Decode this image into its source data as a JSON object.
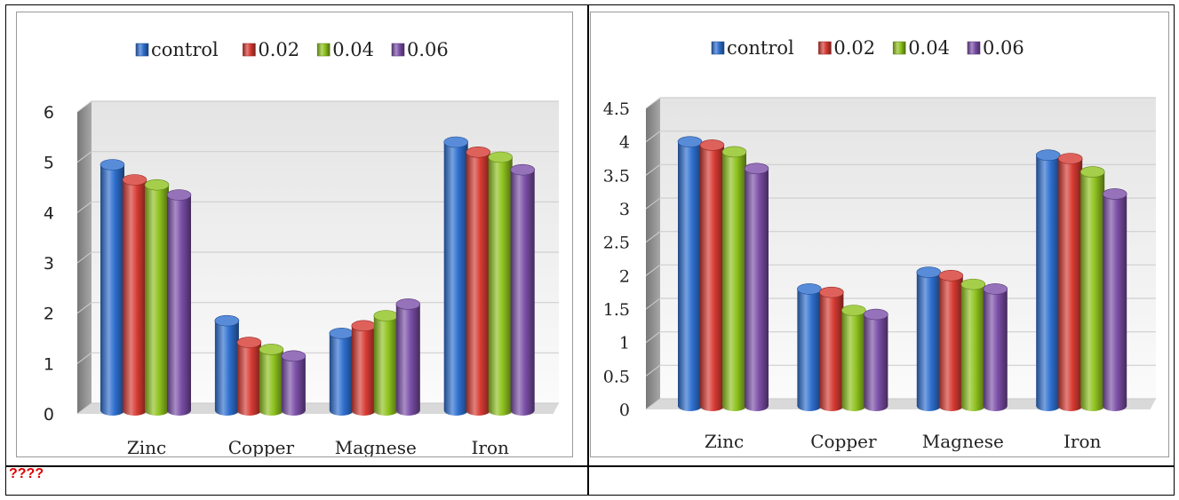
{
  "caption": "????",
  "chart_data": [
    {
      "type": "bar",
      "categories": [
        "Zinc",
        "Copper",
        "Magnese",
        "Iron"
      ],
      "series": [
        {
          "name": "control",
          "values": [
            4.95,
            1.85,
            1.6,
            5.4
          ],
          "color": "#2e6fcf"
        },
        {
          "name": "0.02",
          "values": [
            4.65,
            1.42,
            1.75,
            5.2
          ],
          "color": "#d63a32"
        },
        {
          "name": "0.04",
          "values": [
            4.55,
            1.28,
            1.95,
            5.1
          ],
          "color": "#8ec21e"
        },
        {
          "name": "0.06",
          "values": [
            4.35,
            1.15,
            2.18,
            4.85
          ],
          "color": "#7b4fa8"
        }
      ],
      "ylim": [
        0,
        6
      ],
      "yticks": [
        "0",
        "1",
        "2",
        "3",
        "4",
        "5",
        "6"
      ],
      "grid": true,
      "legend": "top"
    },
    {
      "type": "bar",
      "categories": [
        "Zinc",
        "Copper",
        "Magnese",
        "Iron"
      ],
      "series": [
        {
          "name": "control",
          "values": [
            4.0,
            1.8,
            2.05,
            3.8
          ],
          "color": "#2e6fcf"
        },
        {
          "name": "0.02",
          "values": [
            3.95,
            1.75,
            2.0,
            3.75
          ],
          "color": "#d63a32"
        },
        {
          "name": "0.04",
          "values": [
            3.85,
            1.48,
            1.87,
            3.55
          ],
          "color": "#8ec21e"
        },
        {
          "name": "0.06",
          "values": [
            3.6,
            1.42,
            1.8,
            3.22
          ],
          "color": "#7b4fa8"
        }
      ],
      "ylim": [
        0,
        4.5
      ],
      "yticks": [
        "0",
        "0.5",
        "1",
        "1.5",
        "2",
        "2.5",
        "3",
        "3.5",
        "4",
        "4.5"
      ],
      "grid": true,
      "legend": "top"
    }
  ]
}
